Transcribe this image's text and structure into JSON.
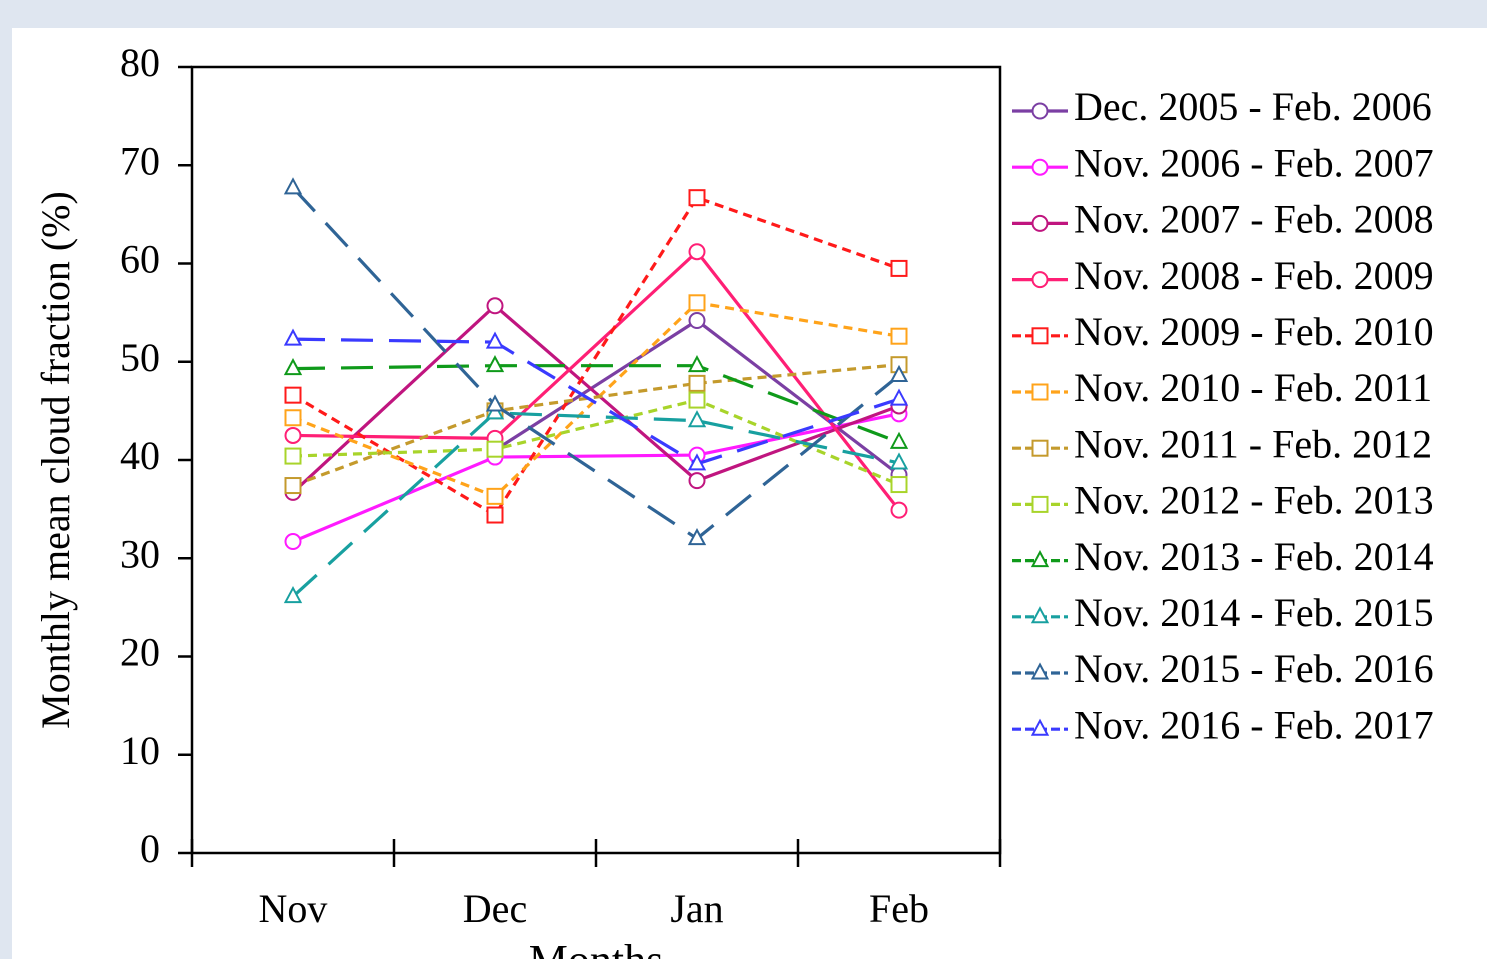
{
  "chart_data": {
    "type": "line",
    "x_label": "Months",
    "y_label": "Monthly mean cloud fraction (%)",
    "categories": [
      "Nov",
      "Dec",
      "Jan",
      "Feb"
    ],
    "ylim": [
      0,
      80
    ],
    "yticks": [
      0,
      10,
      20,
      30,
      40,
      50,
      60,
      70,
      80
    ],
    "grid": false,
    "legend": "right",
    "series": [
      {
        "name": "Dec. 2005 - Feb. 2006",
        "color": "#7b3fa3",
        "marker": "circle",
        "dash": "solid",
        "values": [
          null,
          41.0,
          54.2,
          38.5
        ]
      },
      {
        "name": "Nov. 2006 - Feb. 2007",
        "color": "#ff1aff",
        "marker": "circle",
        "dash": "solid",
        "values": [
          31.7,
          40.3,
          40.5,
          44.7
        ]
      },
      {
        "name": "Nov. 2007 - Feb. 2008",
        "color": "#c0157f",
        "marker": "circle",
        "dash": "solid",
        "values": [
          36.7,
          55.7,
          37.9,
          45.5
        ]
      },
      {
        "name": "Nov. 2008 - Feb. 2009",
        "color": "#ff1f75",
        "marker": "circle",
        "dash": "solid",
        "values": [
          42.5,
          42.2,
          61.2,
          34.9
        ]
      },
      {
        "name": "Nov. 2009 - Feb. 2010",
        "color": "#ff1a1a",
        "marker": "square",
        "dash": "short",
        "values": [
          46.6,
          34.4,
          66.7,
          59.5
        ]
      },
      {
        "name": "Nov. 2010 - Feb. 2011",
        "color": "#ffa31a",
        "marker": "square",
        "dash": "short",
        "values": [
          44.3,
          36.3,
          56.0,
          52.6
        ]
      },
      {
        "name": "Nov. 2011 - Feb. 2012",
        "color": "#c49a2c",
        "marker": "square",
        "dash": "short",
        "values": [
          37.4,
          45.0,
          47.8,
          49.7
        ]
      },
      {
        "name": "Nov. 2012 - Feb. 2013",
        "color": "#a8d42a",
        "marker": "square",
        "dash": "short",
        "values": [
          40.4,
          41.1,
          46.1,
          37.5
        ]
      },
      {
        "name": "Nov. 2013 - Feb. 2014",
        "color": "#0f9a1a",
        "marker": "triangle",
        "dash": "long",
        "values": [
          49.3,
          49.6,
          49.6,
          41.8
        ]
      },
      {
        "name": "Nov. 2014 - Feb. 2015",
        "color": "#18a0a0",
        "marker": "triangle",
        "dash": "long",
        "values": [
          26.1,
          44.8,
          44.0,
          39.7
        ]
      },
      {
        "name": "Nov. 2015 - Feb. 2016",
        "color": "#2f6496",
        "marker": "triangle",
        "dash": "long",
        "values": [
          67.7,
          45.6,
          32.0,
          48.6
        ]
      },
      {
        "name": "Nov. 2016 - Feb. 2017",
        "color": "#3a3aff",
        "marker": "triangle",
        "dash": "long",
        "values": [
          52.3,
          52.0,
          39.6,
          46.2
        ]
      }
    ]
  }
}
